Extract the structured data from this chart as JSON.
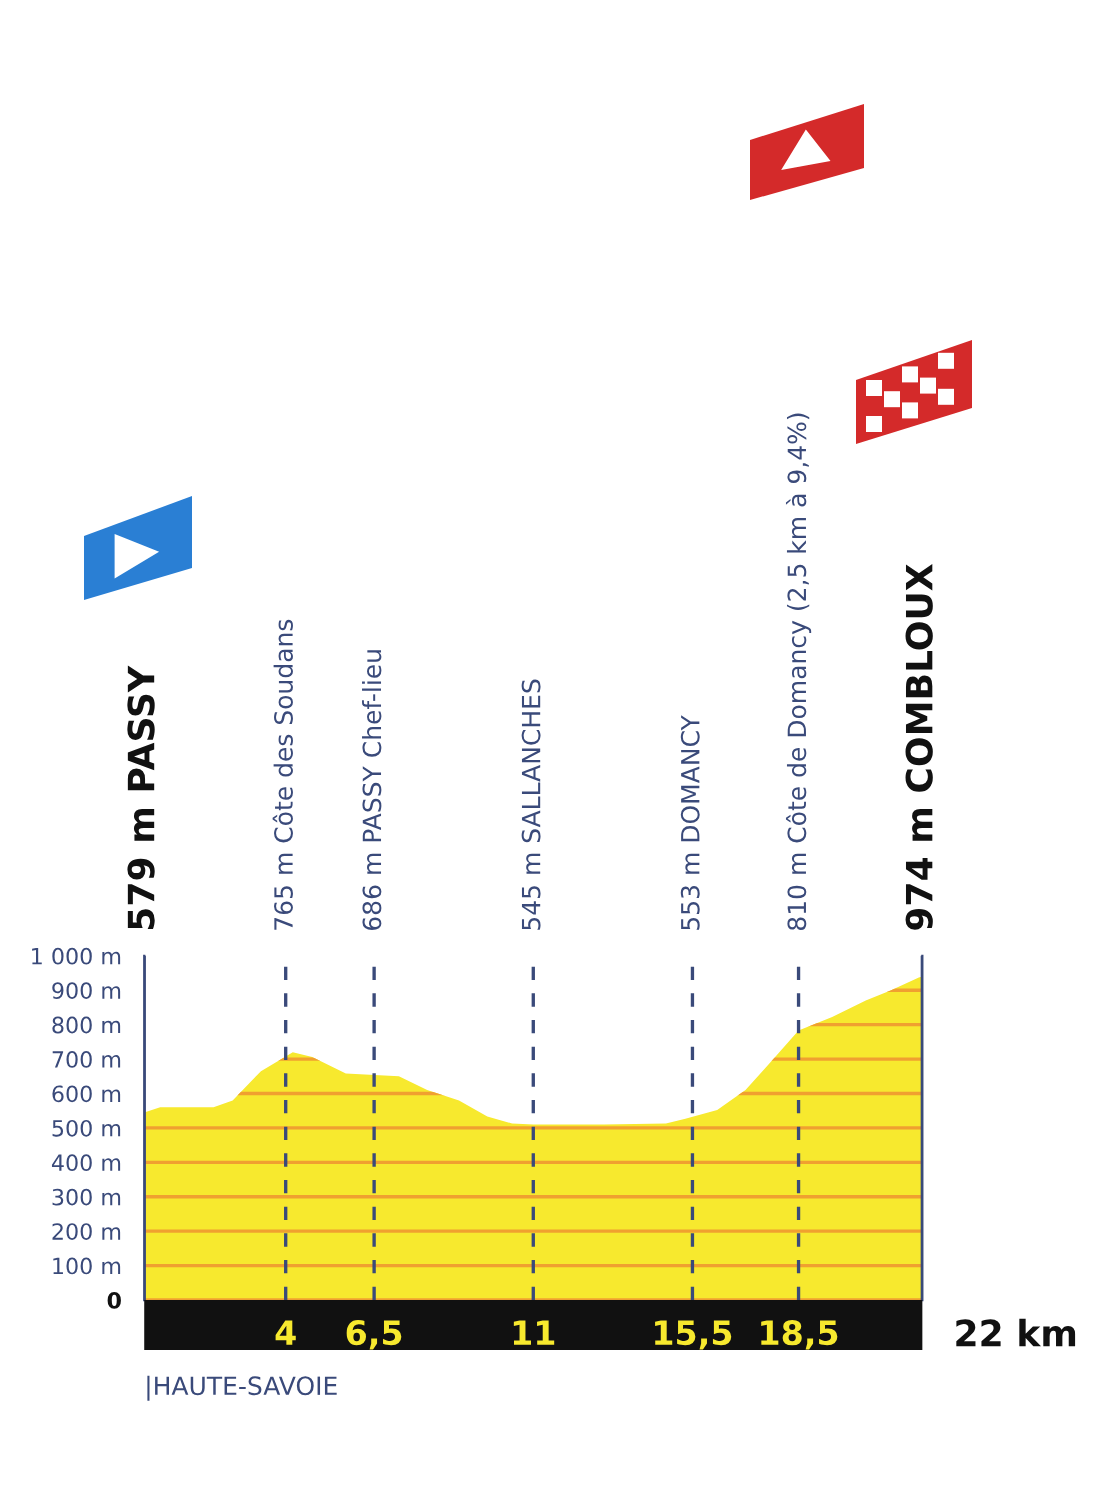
{
  "chart_data": {
    "type": "area",
    "x": [
      0,
      0.45,
      1.96,
      2.5,
      3.3,
      4.2,
      4.75,
      5.7,
      7.2,
      8.0,
      8.9,
      9.7,
      10.4,
      11,
      13,
      14.75,
      15.3,
      16.2,
      17.0,
      17.75,
      18.5,
      19.45,
      20.4,
      21.1,
      21.9,
      22
    ],
    "values": [
      545,
      560,
      560,
      580,
      665,
      720,
      706,
      658,
      650,
      610,
      580,
      533,
      513,
      510,
      510,
      513,
      527,
      552,
      610,
      696,
      783,
      822,
      870,
      899,
      937,
      940
    ],
    "color": "#f7e92e",
    "xlim": [
      0,
      22
    ],
    "ylim": [
      0,
      1000
    ],
    "xlabel": "22 km",
    "xticks": [
      {
        "value": 4,
        "label": "4"
      },
      {
        "value": 6.5,
        "label": "6,5"
      },
      {
        "value": 11,
        "label": "11"
      },
      {
        "value": 15.5,
        "label": "15,5"
      },
      {
        "value": 18.5,
        "label": "18,5"
      }
    ],
    "yticks": [
      {
        "value": 0,
        "label": "0"
      },
      {
        "value": 100,
        "label": "100 m"
      },
      {
        "value": 200,
        "label": "200 m"
      },
      {
        "value": 300,
        "label": "300 m"
      },
      {
        "value": 400,
        "label": "400 m"
      },
      {
        "value": 500,
        "label": "500 m"
      },
      {
        "value": 600,
        "label": "600 m"
      },
      {
        "value": 700,
        "label": "700 m"
      },
      {
        "value": 800,
        "label": "800 m"
      },
      {
        "value": 900,
        "label": "900 m"
      },
      {
        "value": 1000,
        "label": "1 000 m"
      }
    ],
    "grid": "y",
    "ref_lines": [
      {
        "axis": "x",
        "value": 0,
        "label": "579 m PASSY",
        "line_style": "solid",
        "color": "#3a4a7a"
      },
      {
        "axis": "x",
        "value": 4,
        "label": "765 m Côte des Soudans",
        "line_style": "dashed",
        "color": "#3a4a7a"
      },
      {
        "axis": "x",
        "value": 6.5,
        "label": "686 m PASSY Chef-lieu",
        "line_style": "dashed",
        "color": "#3a4a7a"
      },
      {
        "axis": "x",
        "value": 11,
        "label": "545 m SALLANCHES",
        "line_style": "dashed",
        "color": "#3a4a7a"
      },
      {
        "axis": "x",
        "value": 15.5,
        "label": "553 m DOMANCY",
        "line_style": "dashed",
        "color": "#3a4a7a"
      },
      {
        "axis": "x",
        "value": 18.5,
        "label": "810 m Côte de Domancy (2,5 km à 9,4%)",
        "line_style": "dashed",
        "color": "#3a4a7a"
      },
      {
        "axis": "x",
        "value": 22,
        "label": "974 m COMBLOUX",
        "line_style": "solid",
        "color": "#3a4a7a"
      }
    ],
    "annotations": [
      "|HAUTE-SAVOIE"
    ]
  }
}
